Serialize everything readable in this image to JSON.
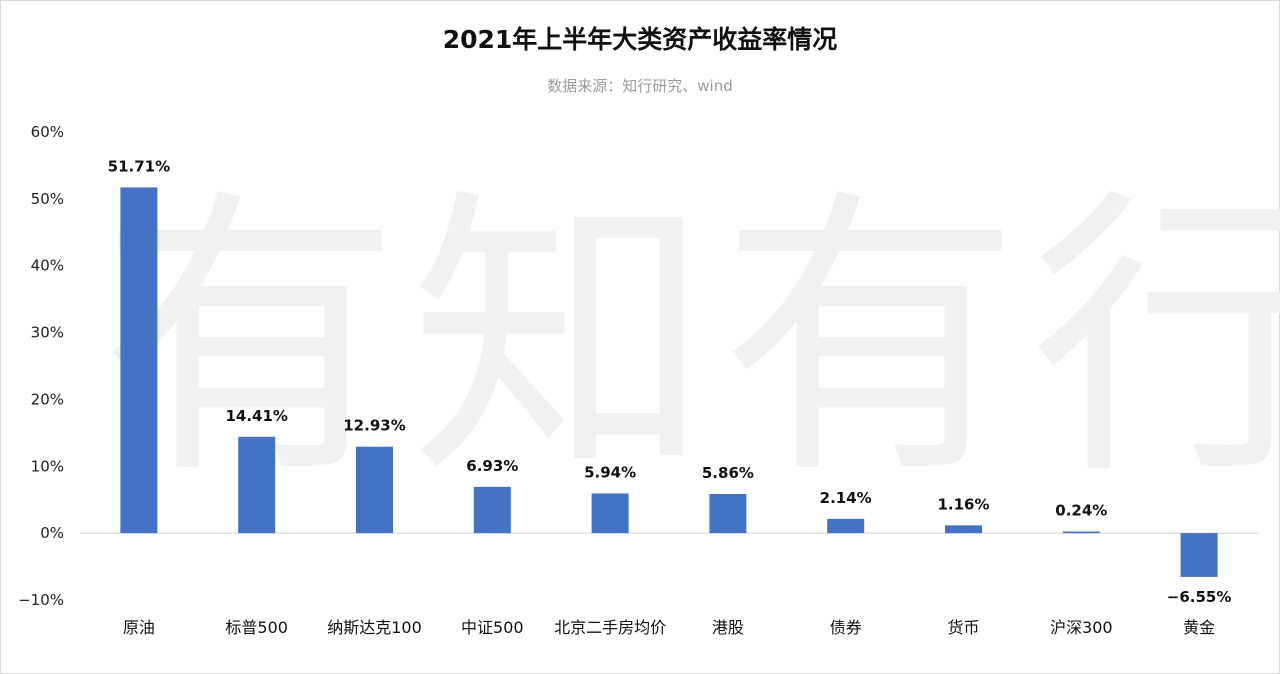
{
  "chart_data": {
    "type": "bar",
    "title": "2021年上半年大类资产收益率情况",
    "subtitle": "数据来源：知行研究、wind",
    "watermark": "有知有行",
    "categories": [
      "原油",
      "标普500",
      "纳斯达克100",
      "中证500",
      "北京二手房均价",
      "港股",
      "债券",
      "货币",
      "沪深300",
      "黄金"
    ],
    "values": [
      51.71,
      14.41,
      12.93,
      6.93,
      5.94,
      5.86,
      2.14,
      1.16,
      0.24,
      -6.55
    ],
    "data_labels": [
      "51.71%",
      "14.41%",
      "12.93%",
      "6.93%",
      "5.94%",
      "5.86%",
      "2.14%",
      "1.16%",
      "0.24%",
      "−6.55%"
    ],
    "ylim": [
      -10,
      60
    ],
    "yticks": [
      60,
      50,
      40,
      30,
      20,
      10,
      0,
      -10
    ],
    "ytick_labels": [
      "60%",
      "50%",
      "40%",
      "30%",
      "20%",
      "10%",
      "0%",
      "−10%"
    ],
    "bar_color": "#4472c4",
    "xlabel": "",
    "ylabel": "",
    "grid": false,
    "legend": "none"
  }
}
